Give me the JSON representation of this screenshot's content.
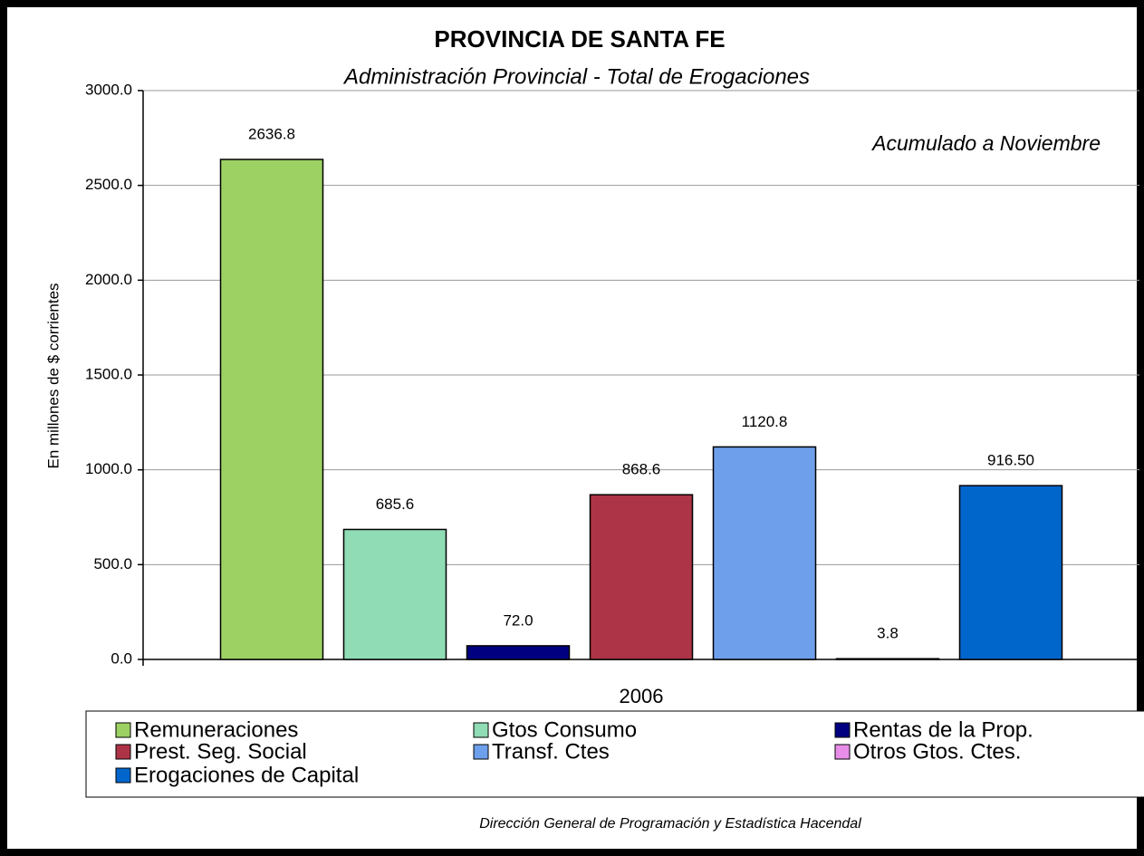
{
  "chart_data": {
    "type": "bar",
    "title": "PROVINCIA DE SANTA FE",
    "subtitle": "Administración  Provincial - Total de Erogaciones",
    "annotation": "Acumulado a Noviembre",
    "y_label": "En millones de $ corrientes",
    "footer": "Dirección General de Programación y Estadística Hacendal",
    "categories": [
      "2006"
    ],
    "series": [
      {
        "name": "Remuneraciones",
        "color": "#9dd164",
        "values": [
          2636.8
        ],
        "value_labels": [
          "2636.8"
        ]
      },
      {
        "name": "Gtos Consumo",
        "color": "#8fdcb5",
        "values": [
          685.6
        ],
        "value_labels": [
          "685.6"
        ]
      },
      {
        "name": "Rentas de la Prop.",
        "color": "#000080",
        "values": [
          72.0
        ],
        "value_labels": [
          "72.0"
        ]
      },
      {
        "name": "Prest. Seg. Social",
        "color": "#ad3446",
        "values": [
          868.6
        ],
        "value_labels": [
          "868.6"
        ]
      },
      {
        "name": "Transf. Ctes",
        "color": "#6e9fea",
        "values": [
          1120.8
        ],
        "value_labels": [
          "1120.8"
        ]
      },
      {
        "name": "Otros Gtos. Ctes.",
        "color": "#e88ee8",
        "values": [
          3.8
        ],
        "value_labels": [
          "3.8"
        ]
      },
      {
        "name": "Erogaciones de Capital",
        "color": "#0066cc",
        "values": [
          916.5
        ],
        "value_labels": [
          "916.50"
        ]
      }
    ],
    "ylim": [
      0,
      3000
    ],
    "yticks": [
      {
        "value": 0,
        "label": "0.0"
      },
      {
        "value": 500,
        "label": "500.0"
      },
      {
        "value": 1000,
        "label": "1000.0"
      },
      {
        "value": 1500,
        "label": "1500.0"
      },
      {
        "value": 2000,
        "label": "2000.0"
      },
      {
        "value": 2500,
        "label": "2500.0"
      },
      {
        "value": 3000,
        "label": "3000.0"
      }
    ],
    "grid": true
  }
}
